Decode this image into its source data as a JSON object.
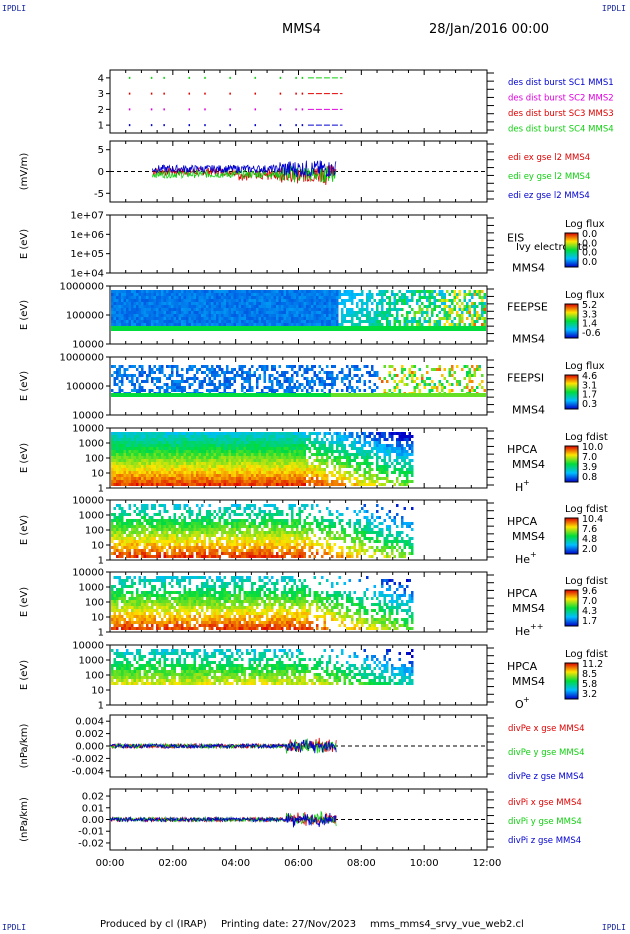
{
  "header": {
    "corner_tl": "IPDLI",
    "corner_tr": "IPDLI",
    "spacecraft": "MMS4",
    "date": "28/Jan/2016 00:00"
  },
  "footer": {
    "corner_bl": "IPDLI",
    "corner_br": "IPDLI",
    "produced": "Produced by cl (IRAP)",
    "printed": "Printing date: 27/Nov/2023",
    "file": "mms_mms4_srvy_vue_web2.cl"
  },
  "colors": {
    "red": "#e00000",
    "green": "#10d010",
    "blue": "#0000d0",
    "magenta": "#e000e0"
  },
  "chart_data": {
    "type": "heatmap",
    "x_axis": {
      "range": [
        "00:00",
        "12:00"
      ],
      "ticks": [
        "00:00",
        "02:00",
        "04:00",
        "06:00",
        "08:00",
        "10:00",
        "12:00"
      ]
    },
    "panels": [
      {
        "id": "des-dist",
        "type": "scatter",
        "ylim": [
          0.5,
          4.5
        ],
        "yticks": [
          "4",
          "3",
          "2",
          "1"
        ],
        "ylabel": "",
        "legend": [
          {
            "name": "des dist burst SC1 MMS1",
            "color": "#0000d0"
          },
          {
            "name": "des dist burst SC2 MMS2",
            "color": "#e000e0"
          },
          {
            "name": "des dist burst SC3 MMS3",
            "color": "#e00000"
          },
          {
            "name": "des dist burst SC4 MMS4",
            "color": "#10d010"
          }
        ]
      },
      {
        "id": "edi-e",
        "type": "line",
        "ylim": [
          -7,
          7
        ],
        "yticks": [
          "5",
          "0",
          "-5"
        ],
        "ylabel": "(mV/m)",
        "legend": [
          {
            "name": "edi ex gse l2 MMS4",
            "color": "#e00000"
          },
          {
            "name": "edi ey gse l2 MMS4",
            "color": "#10d010"
          },
          {
            "name": "edi ez gse l2 MMS4",
            "color": "#0000d0"
          }
        ]
      },
      {
        "id": "eis",
        "type": "heatmap",
        "yticks": [
          "1e+07",
          "1e+06",
          "1e+05",
          "1e+04"
        ],
        "ylabel": "E (eV)",
        "instrument": "EIS",
        "sub1": "MMS4",
        "species": "",
        "overlay": "Ivy electron to",
        "cbar_title": "Log flux",
        "cbar_ticks": [
          "0.0",
          "0.0",
          "0.0",
          "0.0"
        ]
      },
      {
        "id": "feepse",
        "type": "heatmap",
        "yticks": [
          "1000000",
          "100000",
          "10000"
        ],
        "ylabel": "E (eV)",
        "instrument": "FEEPSE",
        "sub1": "MMS4",
        "species": "",
        "cbar_title": "Log flux",
        "cbar_ticks": [
          "5.2",
          "3.3",
          "1.4",
          "-0.6"
        ]
      },
      {
        "id": "feepsi",
        "type": "heatmap",
        "yticks": [
          "1000000",
          "100000",
          "10000"
        ],
        "ylabel": "E (eV)",
        "instrument": "FEEPSI",
        "sub1": "MMS4",
        "species": "",
        "cbar_title": "Log flux",
        "cbar_ticks": [
          "4.6",
          "3.1",
          "1.7",
          "0.3"
        ]
      },
      {
        "id": "hpca-h",
        "type": "heatmap",
        "yticks": [
          "10000",
          "1000",
          "100",
          "10",
          "1"
        ],
        "ylabel": "E (eV)",
        "instrument": "HPCA",
        "sub1": "MMS4",
        "species": "H",
        "charge": "+",
        "cbar_title": "Log fdist",
        "cbar_ticks": [
          "10.0",
          "7.0",
          "3.9",
          "0.8"
        ]
      },
      {
        "id": "hpca-he",
        "type": "heatmap",
        "yticks": [
          "10000",
          "1000",
          "100",
          "10",
          "1"
        ],
        "ylabel": "E (eV)",
        "instrument": "HPCA",
        "sub1": "MMS4",
        "species": "He",
        "charge": "+",
        "cbar_title": "Log fdist",
        "cbar_ticks": [
          "10.4",
          "7.6",
          "4.8",
          "2.0"
        ]
      },
      {
        "id": "hpca-he2",
        "type": "heatmap",
        "yticks": [
          "10000",
          "1000",
          "100",
          "10",
          "1"
        ],
        "ylabel": "E (eV)",
        "instrument": "HPCA",
        "sub1": "MMS4",
        "species": "He",
        "charge": "++",
        "cbar_title": "Log fdist",
        "cbar_ticks": [
          "9.6",
          "7.0",
          "4.3",
          "1.7"
        ]
      },
      {
        "id": "hpca-o",
        "type": "heatmap",
        "yticks": [
          "10000",
          "1000",
          "100",
          "10",
          "1"
        ],
        "ylabel": "E (eV)",
        "instrument": "HPCA",
        "sub1": "MMS4",
        "species": "O",
        "charge": "+",
        "cbar_title": "Log fdist",
        "cbar_ticks": [
          "11.2",
          "8.5",
          "5.8",
          "3.2"
        ]
      },
      {
        "id": "divpe",
        "type": "line",
        "ylim": [
          -0.005,
          0.005
        ],
        "yticks": [
          "0.004",
          "0.002",
          "0.000",
          "-0.002",
          "-0.004"
        ],
        "ylabel": "(nPa/km)",
        "legend": [
          {
            "name": "divPe x gse MMS4",
            "color": "#e00000"
          },
          {
            "name": "divPe y gse MMS4",
            "color": "#10d010"
          },
          {
            "name": "divPe z gse MMS4",
            "color": "#0000d0"
          }
        ]
      },
      {
        "id": "divpi",
        "type": "line",
        "ylim": [
          -0.026,
          0.026
        ],
        "yticks": [
          "0.02",
          "0.01",
          "0.00",
          "-0.01",
          "-0.02"
        ],
        "ylabel": "(nPa/km)",
        "legend": [
          {
            "name": "divPi x gse MMS4",
            "color": "#e00000"
          },
          {
            "name": "divPi y gse MMS4",
            "color": "#10d010"
          },
          {
            "name": "divPi z gse MMS4",
            "color": "#0000d0"
          }
        ]
      }
    ]
  }
}
